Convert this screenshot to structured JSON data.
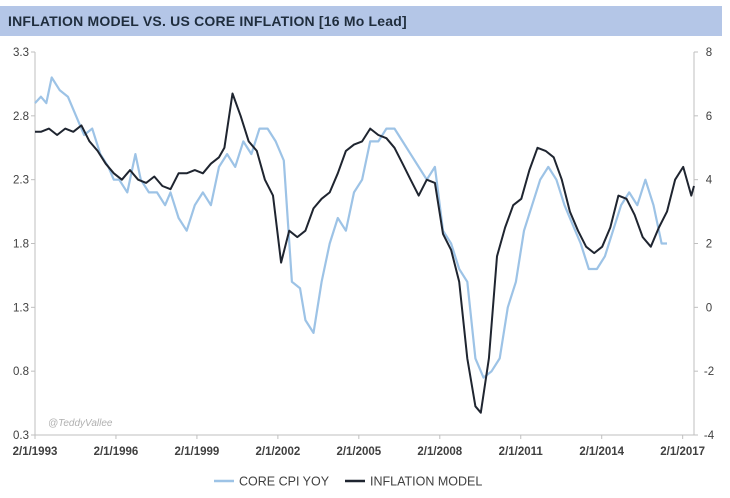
{
  "title": "INFLATION MODEL  VS. US CORE INFLATION [16 Mo Lead]",
  "watermark": "@TeddyVallee",
  "colors": {
    "title_bar": "#b4c6e7",
    "core_cpi": "#9dc3e6",
    "inflation_model": "#1f2530"
  },
  "chart_data": {
    "type": "line",
    "title": "INFLATION MODEL  VS. US CORE INFLATION [16 Mo Lead]",
    "xlabel": "",
    "ylabel_left": "",
    "ylabel_right": "",
    "x_range": [
      1993.08,
      2017.5
    ],
    "ylim_left": [
      0.3,
      3.3
    ],
    "ylim_right": [
      -4,
      8
    ],
    "left_ticks": [
      "0.3",
      "0.8",
      "1.3",
      "1.8",
      "2.3",
      "2.8",
      "3.3"
    ],
    "right_ticks": [
      "-4",
      "-2",
      "0",
      "2",
      "4",
      "6",
      "8"
    ],
    "x_ticks": [
      "2/1/1993",
      "2/1/1996",
      "2/1/1999",
      "2/1/2002",
      "2/1/2005",
      "2/1/2008",
      "2/1/2011",
      "2/1/2014",
      "2/1/2017"
    ],
    "x_tick_years": [
      1993.08,
      1996.08,
      1999.08,
      2002.08,
      2005.08,
      2008.08,
      2011.08,
      2014.08,
      2017.08
    ],
    "grid": false,
    "legend_position": "bottom",
    "series": [
      {
        "name": "CORE CPI YOY",
        "axis": "left",
        "color": "#9dc3e6",
        "x": [
          1993.08,
          1993.3,
          1993.5,
          1993.7,
          1994.0,
          1994.3,
          1994.6,
          1994.9,
          1995.2,
          1995.5,
          1995.8,
          1996.0,
          1996.2,
          1996.5,
          1996.8,
          1997.0,
          1997.3,
          1997.6,
          1997.9,
          1998.1,
          1998.4,
          1998.7,
          1999.0,
          1999.3,
          1999.6,
          1999.9,
          2000.2,
          2000.5,
          2000.8,
          2001.1,
          2001.4,
          2001.7,
          2002.0,
          2002.3,
          2002.6,
          2002.9,
          2003.1,
          2003.4,
          2003.7,
          2004.0,
          2004.3,
          2004.6,
          2004.9,
          2005.2,
          2005.5,
          2005.8,
          2006.1,
          2006.4,
          2006.7,
          2007.0,
          2007.3,
          2007.6,
          2007.9,
          2008.2,
          2008.5,
          2008.8,
          2009.1,
          2009.4,
          2009.7,
          2010.0,
          2010.3,
          2010.6,
          2010.9,
          2011.2,
          2011.5,
          2011.8,
          2012.1,
          2012.4,
          2012.7,
          2013.0,
          2013.3,
          2013.6,
          2013.9,
          2014.2,
          2014.5,
          2014.8,
          2015.1,
          2015.4,
          2015.7,
          2016.0,
          2016.3,
          2016.5
        ],
        "y": [
          2.9,
          2.95,
          2.9,
          3.1,
          3.0,
          2.95,
          2.8,
          2.65,
          2.7,
          2.5,
          2.4,
          2.3,
          2.3,
          2.2,
          2.5,
          2.3,
          2.2,
          2.2,
          2.1,
          2.2,
          2.0,
          1.9,
          2.1,
          2.2,
          2.1,
          2.4,
          2.5,
          2.4,
          2.6,
          2.5,
          2.7,
          2.7,
          2.6,
          2.45,
          1.5,
          1.45,
          1.2,
          1.1,
          1.5,
          1.8,
          2.0,
          1.9,
          2.2,
          2.3,
          2.6,
          2.6,
          2.7,
          2.7,
          2.6,
          2.5,
          2.4,
          2.3,
          2.4,
          1.9,
          1.8,
          1.6,
          1.5,
          0.9,
          0.75,
          0.8,
          0.9,
          1.3,
          1.5,
          1.9,
          2.1,
          2.3,
          2.4,
          2.3,
          2.1,
          1.95,
          1.8,
          1.6,
          1.6,
          1.7,
          1.9,
          2.1,
          2.2,
          2.1,
          2.3,
          2.1,
          1.8,
          1.8
        ]
      },
      {
        "name": "INFLATION MODEL",
        "axis": "right",
        "color": "#1f2530",
        "x": [
          1993.08,
          1993.3,
          1993.6,
          1993.9,
          1994.2,
          1994.5,
          1994.8,
          1995.1,
          1995.4,
          1995.7,
          1996.0,
          1996.3,
          1996.6,
          1996.9,
          1997.2,
          1997.5,
          1997.8,
          1998.1,
          1998.4,
          1998.7,
          1999.0,
          1999.3,
          1999.6,
          1999.9,
          2000.1,
          2000.4,
          2000.7,
          2001.0,
          2001.3,
          2001.6,
          2001.9,
          2002.2,
          2002.5,
          2002.8,
          2003.1,
          2003.4,
          2003.7,
          2004.0,
          2004.3,
          2004.6,
          2004.9,
          2005.2,
          2005.5,
          2005.8,
          2006.1,
          2006.4,
          2006.7,
          2007.0,
          2007.3,
          2007.6,
          2007.9,
          2008.2,
          2008.5,
          2008.8,
          2009.1,
          2009.4,
          2009.6,
          2009.9,
          2010.2,
          2010.5,
          2010.8,
          2011.1,
          2011.4,
          2011.7,
          2012.0,
          2012.3,
          2012.6,
          2012.9,
          2013.2,
          2013.5,
          2013.8,
          2014.1,
          2014.4,
          2014.7,
          2015.0,
          2015.3,
          2015.6,
          2015.9,
          2016.2,
          2016.5,
          2016.8,
          2017.1,
          2017.4,
          2017.5
        ],
        "y": [
          5.5,
          5.5,
          5.6,
          5.4,
          5.6,
          5.5,
          5.7,
          5.2,
          4.9,
          4.5,
          4.2,
          4.0,
          4.3,
          4.0,
          3.9,
          4.1,
          3.8,
          3.7,
          4.2,
          4.2,
          4.3,
          4.2,
          4.5,
          4.7,
          5.0,
          6.7,
          6.0,
          5.2,
          4.9,
          4.0,
          3.5,
          1.4,
          2.4,
          2.2,
          2.4,
          3.1,
          3.4,
          3.6,
          4.2,
          4.9,
          5.1,
          5.2,
          5.6,
          5.4,
          5.3,
          5.0,
          4.5,
          4.0,
          3.5,
          4.0,
          3.9,
          2.3,
          1.8,
          0.8,
          -1.6,
          -3.1,
          -3.3,
          -1.6,
          1.6,
          2.5,
          3.2,
          3.4,
          4.3,
          5.0,
          4.9,
          4.7,
          4.0,
          3.0,
          2.4,
          1.9,
          1.7,
          1.9,
          2.5,
          3.5,
          3.4,
          2.9,
          2.2,
          1.9,
          2.5,
          3.0,
          4.0,
          4.4,
          3.5,
          3.8
        ]
      }
    ]
  },
  "legend": [
    {
      "label": "CORE CPI YOY",
      "color": "#9dc3e6"
    },
    {
      "label": "INFLATION MODEL",
      "color": "#1f2530"
    }
  ]
}
